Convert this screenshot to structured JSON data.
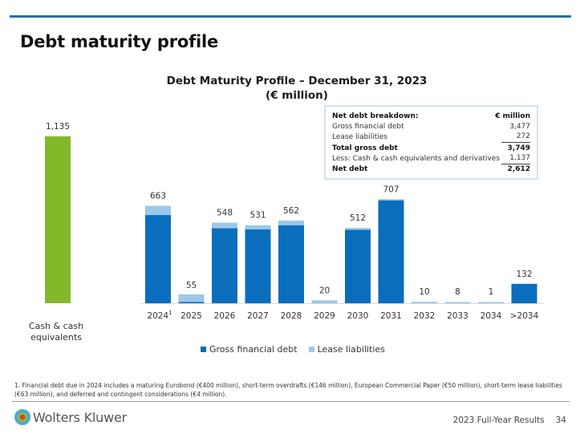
{
  "page": {
    "title": "Debt maturity profile",
    "footer_label": "2023 Full-Year Results",
    "page_number": "34",
    "brand": "Wolters Kluwer",
    "footnote": "1. Financial debt due in 2024 includes a maturing Eurobond (€400 million), short-term overdrafts (€146 million), European Commercial Paper (€50 million), short-term lease liabilities (€63 million), and deferred and contingent considerations (€4 million)."
  },
  "chart_data": {
    "type": "bar",
    "stacked": true,
    "title": "Debt Maturity Profile – December 31, 2023",
    "subtitle": "(€ million)",
    "cash": {
      "label_line1": "Cash & cash",
      "label_line2": "equivalents",
      "value": 1135,
      "value_label": "1,135",
      "color": "#84b82b"
    },
    "categories": [
      "2024",
      "2025",
      "2026",
      "2027",
      "2028",
      "2029",
      "2030",
      "2031",
      "2032",
      "2033",
      "2034",
      ">2034"
    ],
    "category_superscripts": [
      "1",
      "",
      "",
      "",
      "",
      "",
      "",
      "",
      "",
      "",
      "",
      ""
    ],
    "totals": [
      663,
      55,
      548,
      531,
      562,
      20,
      512,
      707,
      10,
      8,
      1,
      132
    ],
    "total_labels": [
      "663",
      "55",
      "548",
      "531",
      "562",
      "20",
      "512",
      "707",
      "10",
      "8",
      "1",
      "132"
    ],
    "series": [
      {
        "name": "Gross financial debt",
        "color": "#0a6ebd",
        "values": [
          600,
          3,
          510,
          503,
          531,
          0,
          500,
          700,
          0,
          0,
          0,
          132
        ]
      },
      {
        "name": "Lease liabilities",
        "color": "#9cc8ea",
        "values": [
          63,
          52,
          38,
          28,
          31,
          20,
          12,
          7,
          10,
          8,
          1,
          0
        ]
      }
    ],
    "xlabel": "",
    "ylabel": "",
    "ylim": [
      0,
      1135
    ],
    "grid": false,
    "legend": "bottom"
  },
  "breakdown": {
    "header_label": "Net debt breakdown:",
    "header_unit": "€ million",
    "rows": [
      {
        "label": "Gross financial debt",
        "value": "3,477"
      },
      {
        "label": "Lease liabilities",
        "value": "272"
      },
      {
        "label": "Total gross debt",
        "value": "3,749"
      },
      {
        "label": "Less: Cash & cash equivalents and derivatives",
        "value": "1,137"
      },
      {
        "label": "Net debt",
        "value": "2,612"
      }
    ]
  }
}
